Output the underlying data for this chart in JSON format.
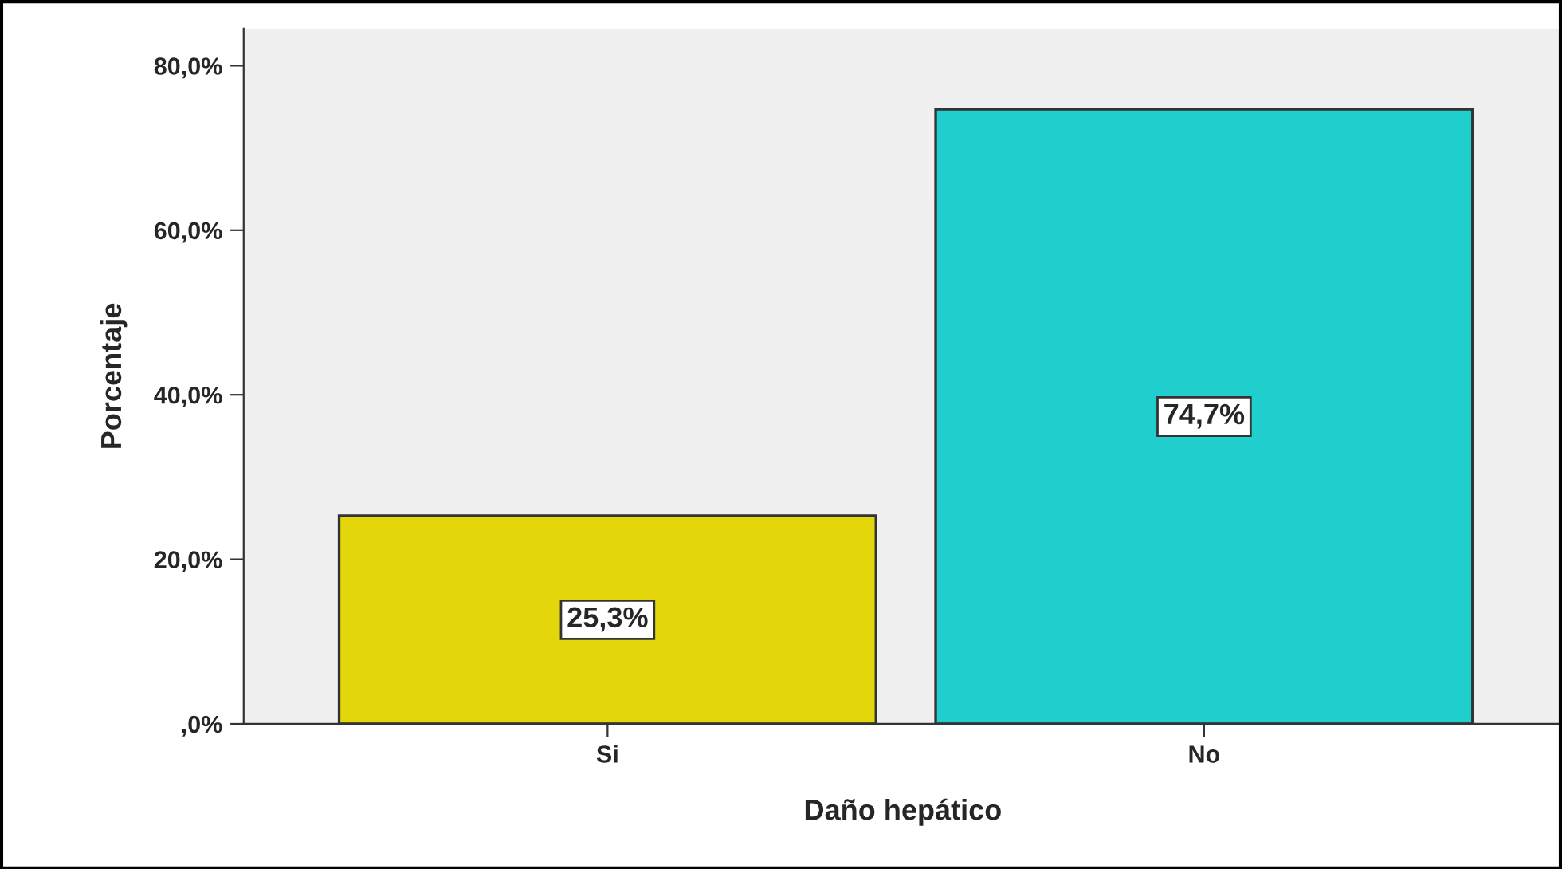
{
  "chart_data": {
    "type": "bar",
    "xlabel": "Daño hepático",
    "ylabel": "Porcentaje",
    "categories": [
      "Si",
      "No"
    ],
    "values": [
      25.3,
      74.7
    ],
    "colors": [
      "#e3d70c",
      "#1fcecd"
    ],
    "value_labels": [
      "25,3%",
      "74,7%"
    ],
    "ylim": [
      0,
      84.5
    ],
    "yticks": [
      {
        "value": 0,
        "label": ",0%"
      },
      {
        "value": 20,
        "label": "20,0%"
      },
      {
        "value": 40,
        "label": "40,0%"
      },
      {
        "value": 60,
        "label": "60,0%"
      },
      {
        "value": 80,
        "label": "80,0%"
      }
    ],
    "grid": false,
    "legend": false
  }
}
